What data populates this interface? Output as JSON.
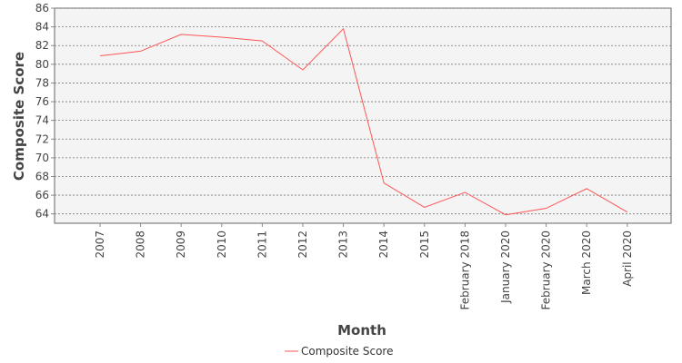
{
  "chart_data": {
    "type": "line",
    "categories": [
      "2007",
      "2008",
      "2009",
      "2010",
      "2011",
      "2012",
      "2013",
      "2014",
      "2015",
      "February 2018",
      "January 2020",
      "February 2020",
      "March 2020",
      "April 2020"
    ],
    "series": [
      {
        "name": "Composite Score",
        "values": [
          80.9,
          81.4,
          83.2,
          82.9,
          82.5,
          79.4,
          83.8,
          67.3,
          64.7,
          66.3,
          63.9,
          64.6,
          66.7,
          64.2
        ],
        "color": "#ff5555"
      }
    ],
    "xlabel": "Month",
    "ylabel": "Composite Score",
    "ylim": [
      63,
      86
    ],
    "yticks": [
      64,
      66,
      68,
      70,
      72,
      74,
      76,
      78,
      80,
      82,
      84,
      86
    ],
    "grid": true,
    "legend_position": "bottom-center"
  }
}
